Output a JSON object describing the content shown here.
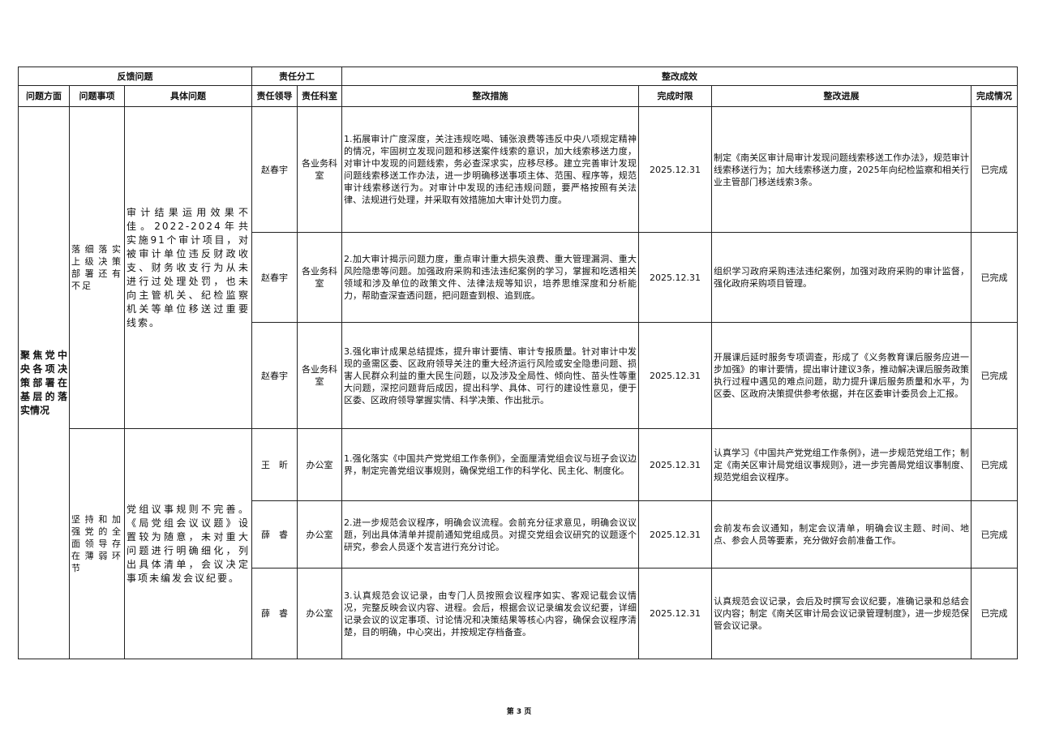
{
  "header": {
    "group1": "反馈问题",
    "group2": "责任分工",
    "group3": "整改成效",
    "columns": [
      "问题方面",
      "问题事项",
      "具体问题",
      "责任领导",
      "责任科室",
      "整改措施",
      "完成时限",
      "整改进展",
      "完成情况"
    ]
  },
  "aspect": "聚焦党中央各项决策部署在基层的落实情况",
  "groups": [
    {
      "item": "落细落实上级决策部署还有不足",
      "problem": "审计结果运用效果不佳。2022-2024年共实施91个审计项目，对被审计单位违反财政收支、财务收支行为从未进行过处理处罚，也未向主管机关、纪检监察机关等单位移送过重要线索。",
      "rows": [
        {
          "leader": "赵春宇",
          "dept": "各业务科室",
          "measure": "1.拓展审计广度深度，关注违规吃喝、铺张浪费等违反中央八项规定精神的情况，牢固树立发现问题和移送案件线索的意识，加大线索移送力度，对审计中发现的问题线索，务必查深求实，应移尽移。建立完善审计发现问题线索移送工作办法，进一步明确移送事项主体、范围、程序等，规范审计线索移送行为。对审计中发现的违纪违规问题，要严格按照有关法律、法规进行处理，并采取有效措施加大审计处罚力度。",
          "deadline": "2025.12.31",
          "progress": "制定《南关区审计局审计发现问题线索移送工作办法》，规范审计线索移送行为；加大线索移送力度，2025年向纪检监察和相关行业主管部门移送线索3条。",
          "status": "已完成"
        },
        {
          "leader": "赵春宇",
          "dept": "各业务科室",
          "measure": "2.加大审计揭示问题力度，重点审计重大损失浪费、重大管理漏洞、重大风险隐患等问题。加强政府采购和违法违纪案例的学习，掌握和吃透相关领域和涉及单位的政策文件、法律法规等知识，培养思维深度和分析能力，帮助查深查透问题，把问题查到根、追到底。",
          "deadline": "2025.12.31",
          "progress": "组织学习政府采购违法违纪案例，加强对政府采购的审计监督，强化政府采购项目管理。",
          "status": "已完成"
        },
        {
          "leader": "赵春宇",
          "dept": "各业务科室",
          "measure": "3.强化审计成果总结提炼，提升审计要情、审计专报质量。针对审计中发现的亟需区委、区政府领导关注的重大经济运行风险或安全隐患问题、损害人民群众利益的重大民生问题，以及涉及全局性、倾向性、苗头性等重大问题，深挖问题背后成因，提出科学、具体、可行的建设性意见，便于区委、区政府领导掌握实情、科学决策、作出批示。",
          "deadline": "2025.12.31",
          "progress": "开展课后延时服务专项调查，形成了《义务教育课后服务应进一步加强》的审计要情，提出审计建议3条，推动解决课后服务政策执行过程中遇见的难点问题，助力提升课后服务质量和水平，为区委、区政府决策提供参考依据，并在区委审计委员会上汇报。",
          "status": "已完成"
        }
      ]
    },
    {
      "item": "坚持和加强党的全面领导存在薄弱环节",
      "problem": "党组议事规则不完善。《局党组会议议题》设置较为随意，未对重大问题进行明确细化，列出具体清单，会议决定事项未编发会议纪要。",
      "rows": [
        {
          "leader": "王　昕",
          "dept": "办公室",
          "measure": "1.强化落实《中国共产党党组工作条例》，全面厘清党组会议与班子会议边界，制定完善党组议事规则，确保党组工作的科学化、民主化、制度化。",
          "deadline": "2025.12.31",
          "progress": "认真学习《中国共产党党组工作条例》，进一步规范党组工作；制定《南关区审计局党组议事规则》，进一步完善局党组议事制度、规范党组会议程序。",
          "status": "已完成"
        },
        {
          "leader": "薛　睿",
          "dept": "办公室",
          "measure": "2.进一步规范会议程序，明确会议流程。会前充分征求意见，明确会议议题，列出具体清单并提前通知党组成员。对提交党组会议研究的议题逐个研究，参会人员逐个发言进行充分讨论。",
          "deadline": "2025.12.31",
          "progress": "会前发布会议通知，制定会议清单，明确会议主题、时间、地点、参会人员等要素，充分做好会前准备工作。",
          "status": "已完成"
        },
        {
          "leader": "薛　睿",
          "dept": "办公室",
          "measure": "3.认真规范会议记录，由专门人员按照会议程序如实、客观记载会议情况，完整反映会议内容、进程。会后，根据会议记录编发会议纪要，详细记录会议的议定事项、讨论情况和决策结果等核心内容，确保会议程序清楚，目的明确，中心突出，并按规定存档备查。",
          "deadline": "2025.12.31",
          "progress": "认真规范会议记录，会后及时撰写会议纪要，准确记录和总结会议内容；制定《南关区审计局会议记录管理制度》，进一步规范保管会议记录。",
          "status": "已完成"
        }
      ]
    }
  ],
  "footer": "第 3 页"
}
